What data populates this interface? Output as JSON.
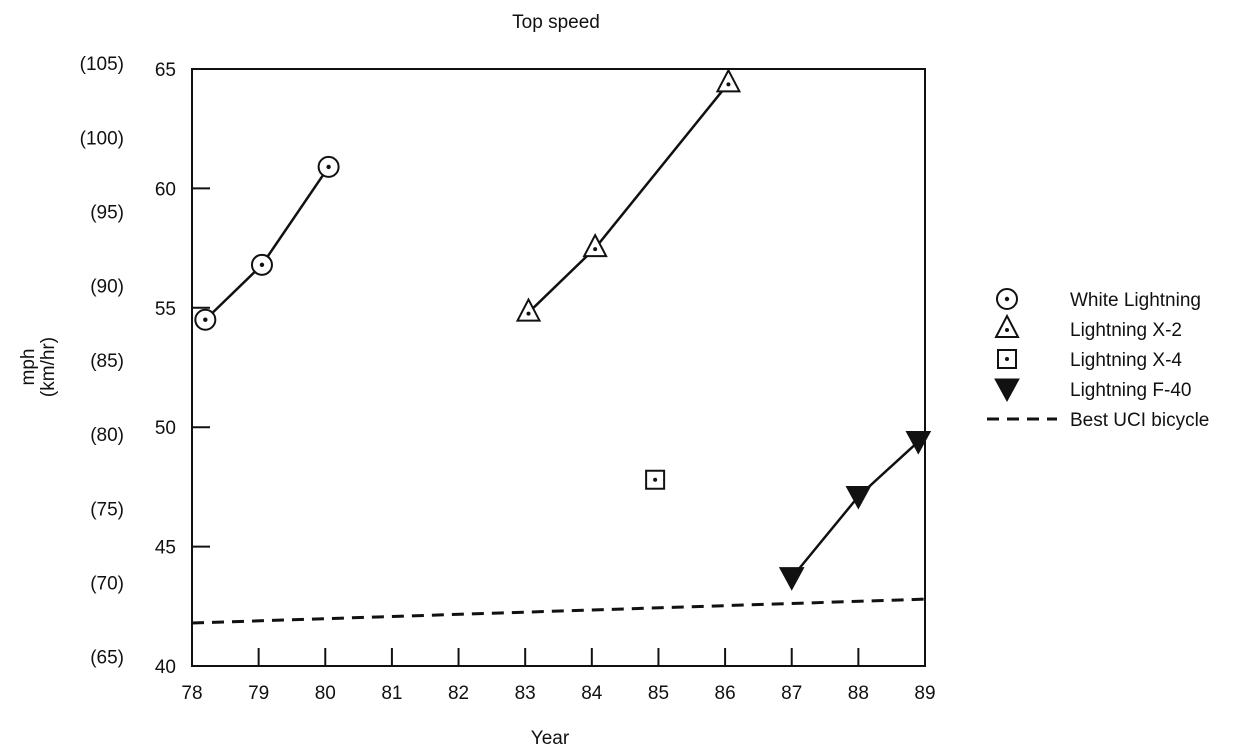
{
  "chart_data": {
    "type": "line",
    "title": "Top speed",
    "xlabel": "Year",
    "ylabel_lines": [
      "mph",
      "(km/hr)"
    ],
    "xlim": [
      78,
      89
    ],
    "ylim": [
      40,
      65
    ],
    "x_ticks": [
      "78",
      "79",
      "80",
      "81",
      "82",
      "83",
      "84",
      "85",
      "86",
      "87",
      "88",
      "89"
    ],
    "y_ticks": [
      {
        "mph": "40",
        "kmh": "(65)"
      },
      {
        "mph": "45",
        "kmh": "(70)"
      },
      {
        "mph": "50",
        "kmh": "(75)"
      },
      {
        "mph": "55",
        "kmh": "(80)"
      },
      {
        "mph": "60",
        "kmh": "(85)"
      },
      {
        "mph": "65",
        "kmh": "(90)"
      }
    ],
    "y_ticks_secondary_only": [
      "(95)",
      "(100)",
      "(105)"
    ],
    "series": [
      {
        "name": "White Lightning",
        "marker": "circle-dot",
        "line": "solid",
        "x": [
          78.2,
          79.05,
          80.05
        ],
        "y": [
          54.5,
          56.8,
          60.9
        ]
      },
      {
        "name": "Lightning X-2",
        "marker": "triangle-dot",
        "line": "solid",
        "x": [
          83.05,
          84.05,
          86.05
        ],
        "y": [
          54.8,
          57.5,
          64.4
        ]
      },
      {
        "name": "Lightning X-4",
        "marker": "square-dot",
        "line": "none",
        "x": [
          84.95
        ],
        "y": [
          47.8
        ]
      },
      {
        "name": "Lightning F-40",
        "marker": "filled-triangle-down",
        "line": "solid",
        "x": [
          87.0,
          88.0,
          88.9
        ],
        "y": [
          43.7,
          47.1,
          49.4
        ]
      },
      {
        "name": "Best UCI bicycle",
        "marker": "none",
        "line": "dashed",
        "x": [
          78.0,
          89.0
        ],
        "y": [
          41.8,
          42.8
        ]
      }
    ],
    "legend_position": "right",
    "grid": false
  }
}
